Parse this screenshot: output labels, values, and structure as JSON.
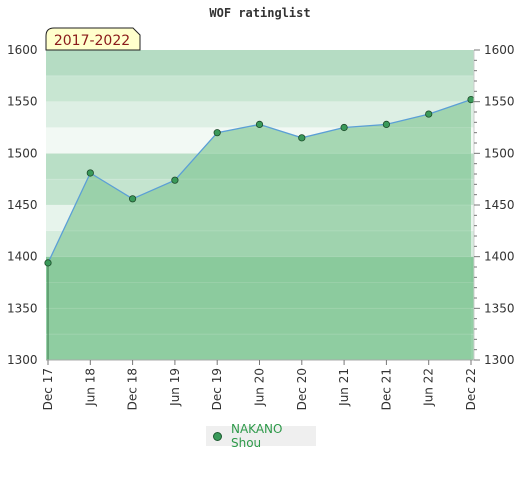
{
  "chart_data": {
    "type": "area",
    "title": "WOF ratinglist",
    "period_badge": "2017-2022",
    "x": [
      "Dec 17",
      "Jun 18",
      "Dec 18",
      "Jun 19",
      "Dec 19",
      "Jun 20",
      "Dec 20",
      "Jun 21",
      "Dec 21",
      "Jun 22",
      "Dec 22"
    ],
    "series": [
      {
        "name": "NAKANO Shou",
        "values": [
          1394,
          1481,
          1456,
          1474,
          1520,
          1528,
          1515,
          1525,
          1528,
          1538,
          1552
        ]
      }
    ],
    "ylim": [
      1300,
      1600
    ],
    "y_ticks": [
      1300,
      1350,
      1400,
      1450,
      1500,
      1550,
      1600
    ],
    "y_axes": "left and right",
    "legend_placement": "bottom-center",
    "colors": {
      "area_fill": "#8ccb9e",
      "line": "#5b9fd6",
      "marker": "#3a9a5a",
      "badge_bg": "#ffffcc",
      "legend_text": "#2e9a4a"
    }
  }
}
